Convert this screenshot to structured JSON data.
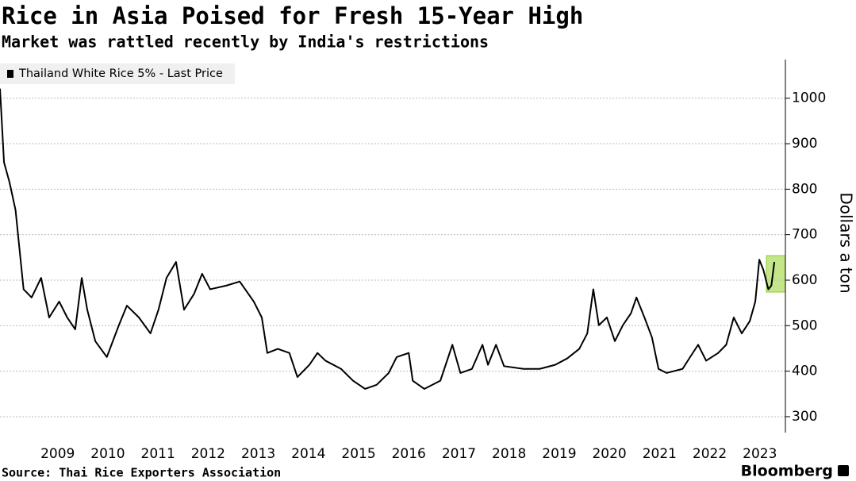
{
  "chart_data": {
    "type": "line",
    "title": "Rice in Asia Poised for Fresh 15-Year High",
    "subtitle": "Market was rattled recently by India's restrictions",
    "source": "Source: Thai Rice Exporters Association",
    "brand": "Bloomberg",
    "y_label": "Dollars a ton",
    "x": [
      2008.35,
      2008.43,
      2008.54,
      2008.66,
      2008.82,
      2008.98,
      2009.17,
      2009.33,
      2009.53,
      2009.69,
      2009.85,
      2009.98,
      2010.09,
      2010.25,
      2010.48,
      2010.72,
      2010.88,
      2011.12,
      2011.35,
      2011.51,
      2011.67,
      2011.86,
      2012.02,
      2012.22,
      2012.38,
      2012.54,
      2012.86,
      2013.13,
      2013.41,
      2013.57,
      2013.68,
      2013.89,
      2014.12,
      2014.28,
      2014.52,
      2014.68,
      2014.84,
      2015.15,
      2015.39,
      2015.63,
      2015.86,
      2016.1,
      2016.26,
      2016.5,
      2016.58,
      2016.81,
      2017.13,
      2017.37,
      2017.53,
      2017.76,
      2017.97,
      2018.08,
      2018.24,
      2018.4,
      2018.79,
      2019.11,
      2019.42,
      2019.66,
      2019.9,
      2020.06,
      2020.18,
      2020.29,
      2020.45,
      2020.61,
      2020.77,
      2020.93,
      2021.04,
      2021.2,
      2021.35,
      2021.48,
      2021.64,
      2021.96,
      2022.11,
      2022.27,
      2022.43,
      2022.67,
      2022.83,
      2022.98,
      2023.14,
      2023.3,
      2023.41,
      2023.49,
      2023.57,
      2023.67,
      2023.73,
      2023.79
    ],
    "series": [
      {
        "name": "Thailand White Rice 5% - Last Price",
        "color": "#000000",
        "values": [
          1021,
          859,
          815,
          754,
          580,
          562,
          605,
          518,
          553,
          518,
          492,
          605,
          535,
          466,
          431,
          501,
          544,
          518,
          483,
          535,
          605,
          640,
          535,
          570,
          614,
          580,
          588,
          597,
          553,
          518,
          440,
          449,
          440,
          387,
          414,
          440,
          423,
          405,
          379,
          361,
          370,
          396,
          431,
          440,
          379,
          361,
          379,
          458,
          396,
          405,
          458,
          414,
          458,
          411,
          405,
          405,
          414,
          428,
          449,
          483,
          580,
          501,
          518,
          466,
          501,
          527,
          562,
          518,
          474,
          405,
          396,
          405,
          431,
          458,
          423,
          440,
          458,
          518,
          483,
          510,
          553,
          645,
          623,
          580,
          588,
          640
        ]
      }
    ],
    "xlim": [
      2008.35,
      2024.01
    ],
    "xticks": [
      {
        "value": 2009.5,
        "label": "2009"
      },
      {
        "value": 2010.5,
        "label": "2010"
      },
      {
        "value": 2011.5,
        "label": "2011"
      },
      {
        "value": 2012.5,
        "label": "2012"
      },
      {
        "value": 2013.5,
        "label": "2013"
      },
      {
        "value": 2014.5,
        "label": "2014"
      },
      {
        "value": 2015.5,
        "label": "2015"
      },
      {
        "value": 2016.5,
        "label": "2016"
      },
      {
        "value": 2017.5,
        "label": "2017"
      },
      {
        "value": 2018.5,
        "label": "2018"
      },
      {
        "value": 2019.5,
        "label": "2019"
      },
      {
        "value": 2020.5,
        "label": "2020"
      },
      {
        "value": 2021.5,
        "label": "2021"
      },
      {
        "value": 2022.5,
        "label": "2022"
      },
      {
        "value": 2023.5,
        "label": "2023"
      }
    ],
    "ylim": [
      265,
      1085
    ],
    "yticks": [
      300,
      400,
      500,
      600,
      700,
      800,
      900,
      1000
    ],
    "grid": true,
    "legend": "top-left"
  }
}
